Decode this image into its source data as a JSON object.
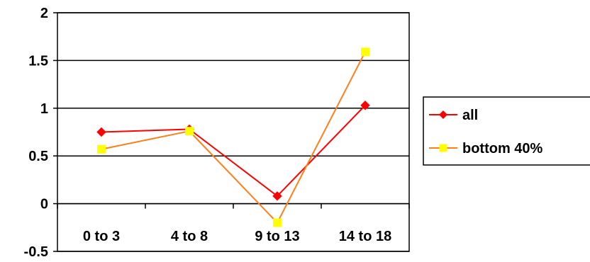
{
  "chart_data": {
    "type": "line",
    "title": "",
    "xlabel": "",
    "ylabel": "",
    "categories": [
      "0 to 3",
      "4 to 8",
      "9 to 13",
      "14 to 18"
    ],
    "ylim": [
      -0.5,
      2
    ],
    "yticks": [
      2,
      1.5,
      1,
      0.5,
      0,
      -0.5
    ],
    "ytick_labels": [
      "2",
      "1.5",
      "1",
      "0.5",
      "0",
      "-0.5"
    ],
    "grid": true,
    "legend_position": "right",
    "series": [
      {
        "name": "all",
        "values": [
          0.75,
          0.78,
          0.08,
          1.03
        ],
        "color": "#ff0000",
        "marker_color": "#ff0000",
        "marker": "diamond"
      },
      {
        "name": "bottom 40%",
        "values": [
          0.57,
          0.76,
          -0.2,
          1.59
        ],
        "color": "#ff7f1a",
        "marker_color": "#ffff00",
        "marker": "square"
      }
    ]
  }
}
